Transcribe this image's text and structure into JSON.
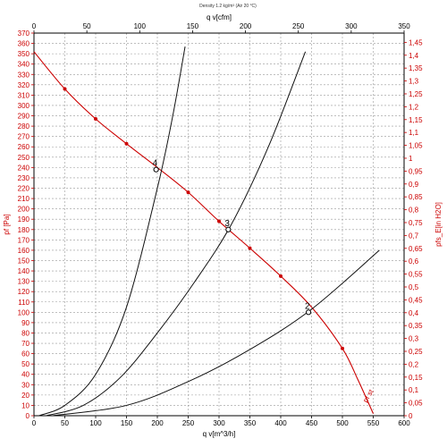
{
  "header": "Density 1.2 kg/m³ (Air 20 °C)",
  "chart_data": {
    "type": "line",
    "x_bottom": {
      "label": "q v[m^3/h]",
      "lim": [
        0,
        600
      ],
      "ticks": [
        0,
        50,
        100,
        150,
        200,
        250,
        300,
        350,
        400,
        450,
        500,
        550,
        600
      ]
    },
    "x_top": {
      "label": "q v[cfm]",
      "lim": [
        0,
        350
      ],
      "ticks": [
        0,
        50,
        100,
        150,
        200,
        250,
        300,
        350
      ]
    },
    "y_left": {
      "label": "pf [Pa]",
      "lim": [
        0,
        370
      ],
      "ticks": [
        0,
        10,
        20,
        30,
        40,
        50,
        60,
        70,
        80,
        90,
        100,
        110,
        120,
        130,
        140,
        150,
        160,
        170,
        180,
        190,
        200,
        210,
        220,
        230,
        240,
        250,
        260,
        270,
        280,
        290,
        300,
        310,
        320,
        330,
        340,
        350,
        360,
        370
      ]
    },
    "y_right": {
      "label": "pfs_E[in H2O]",
      "lim": [
        0,
        1.486
      ],
      "ticks": [
        "0",
        "0,05",
        "0,1",
        "0,15",
        "0,2",
        "0,25",
        "0,3",
        "0,35",
        "0,4",
        "0,45",
        "0,5",
        "0,55",
        "0,6",
        "0,65",
        "0,7",
        "0,75",
        "0,8",
        "0,85",
        "0,9",
        "0,95",
        "1",
        "1,05",
        "1,1",
        "1,15",
        "1,2",
        "1,25",
        "1,3",
        "1,35",
        "1,4",
        "1,45"
      ],
      "tick_values": [
        0,
        0.05,
        0.1,
        0.15,
        0.2,
        0.25,
        0.3,
        0.35,
        0.4,
        0.45,
        0.5,
        0.55,
        0.6,
        0.65,
        0.7,
        0.75,
        0.8,
        0.85,
        0.9,
        0.95,
        1.0,
        1.05,
        1.1,
        1.15,
        1.2,
        1.25,
        1.3,
        1.35,
        1.4,
        1.45
      ]
    },
    "grid": true,
    "series": [
      {
        "color": "#cc0000",
        "x": [
          0,
          50,
          100,
          150,
          200,
          250,
          300,
          350,
          400,
          450,
          500,
          525,
          550
        ],
        "y": [
          352,
          316,
          287,
          263,
          240,
          216,
          188,
          162,
          135,
          105,
          65,
          35,
          2
        ],
        "markers_at": [
          50,
          100,
          150,
          250,
          300,
          350,
          400,
          500
        ]
      },
      {
        "color": "#111111",
        "x": [
          8,
          50,
          100,
          150,
          200,
          225,
          245
        ],
        "y": [
          0,
          10,
          40,
          105,
          220,
          290,
          357
        ]
      },
      {
        "color": "#111111",
        "x": [
          20,
          80,
          140,
          200,
          260,
          320,
          380,
          440
        ],
        "y": [
          0,
          10,
          37,
          80,
          129,
          185,
          260,
          352
        ]
      },
      {
        "color": "#111111",
        "x": [
          30,
          150,
          250,
          350,
          450,
          560
        ],
        "y": [
          0,
          10,
          33,
          64,
          103,
          160
        ]
      }
    ],
    "operating_points": [
      {
        "label": "2",
        "x": 445,
        "y": 100
      },
      {
        "label": "3",
        "x": 315,
        "y": 180
      },
      {
        "label": "4",
        "x": 198,
        "y": 238
      }
    ],
    "annotations": [
      {
        "text": "pf st",
        "x": 545,
        "y": 18,
        "color": "#cc0000"
      }
    ]
  }
}
